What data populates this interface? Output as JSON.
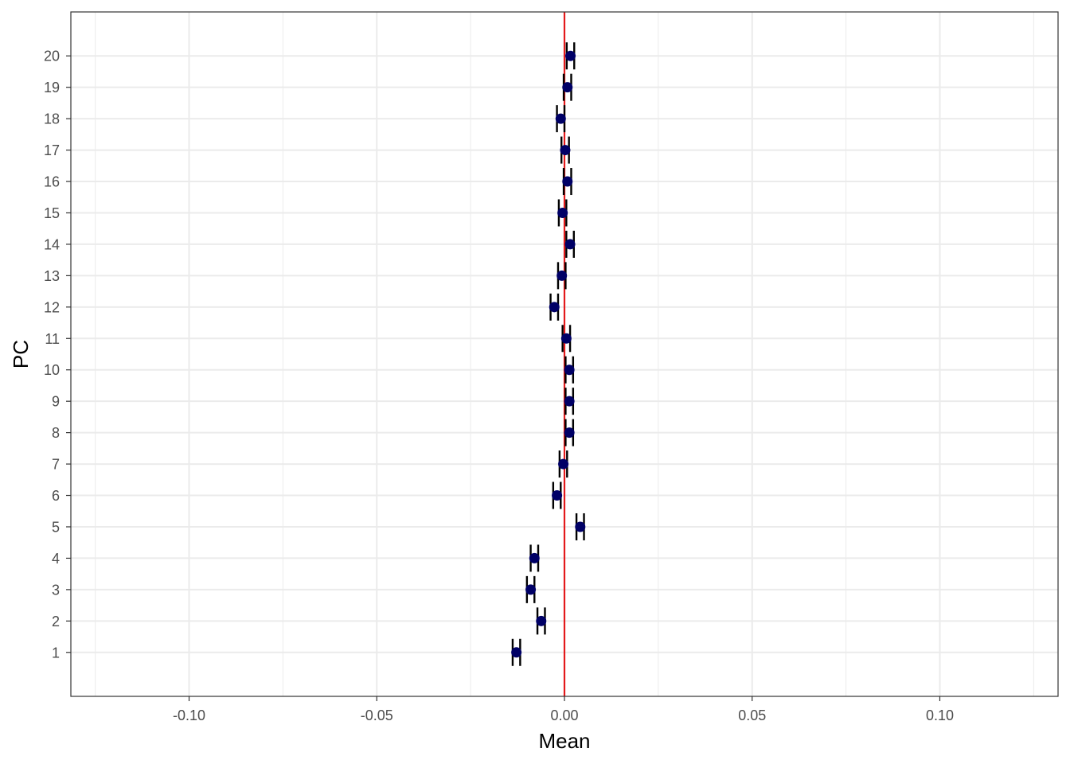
{
  "chart_data": {
    "type": "scatter",
    "title": "",
    "xlabel": "Mean",
    "ylabel": "PC",
    "xlim": [
      -0.1315,
      0.1315
    ],
    "ylim": [
      -0.4,
      21.4
    ],
    "x_ticks": [
      -0.1,
      -0.05,
      0.0,
      0.05,
      0.1
    ],
    "x_tick_labels": [
      "-0.10",
      "-0.05",
      "0.00",
      "0.05",
      "0.10"
    ],
    "y_ticks": [
      1,
      2,
      3,
      4,
      5,
      6,
      7,
      8,
      9,
      10,
      11,
      12,
      13,
      14,
      15,
      16,
      17,
      18,
      19,
      20
    ],
    "y_tick_labels": [
      "1",
      "2",
      "3",
      "4",
      "5",
      "6",
      "7",
      "8",
      "9",
      "10",
      "11",
      "12",
      "13",
      "14",
      "15",
      "16",
      "17",
      "18",
      "19",
      "20"
    ],
    "grid": true,
    "legend": "none",
    "reference_line": {
      "x": 0,
      "color": "#e41a1c"
    },
    "point_color": "#000066",
    "errorbar_color": "#000000",
    "points": [
      {
        "pc": 1,
        "mean": -0.0128,
        "lower": -0.0138,
        "upper": -0.0118
      },
      {
        "pc": 2,
        "mean": -0.0062,
        "lower": -0.0072,
        "upper": -0.0052
      },
      {
        "pc": 3,
        "mean": -0.009,
        "lower": -0.01,
        "upper": -0.008
      },
      {
        "pc": 4,
        "mean": -0.008,
        "lower": -0.009,
        "upper": -0.007
      },
      {
        "pc": 5,
        "mean": 0.0042,
        "lower": 0.0032,
        "upper": 0.0052
      },
      {
        "pc": 6,
        "mean": -0.002,
        "lower": -0.003,
        "upper": -0.001
      },
      {
        "pc": 7,
        "mean": -0.0003,
        "lower": -0.0013,
        "upper": 0.0007
      },
      {
        "pc": 8,
        "mean": 0.0013,
        "lower": 0.0003,
        "upper": 0.0023
      },
      {
        "pc": 9,
        "mean": 0.0013,
        "lower": 0.0003,
        "upper": 0.0023
      },
      {
        "pc": 10,
        "mean": 0.0013,
        "lower": 0.0003,
        "upper": 0.0023
      },
      {
        "pc": 11,
        "mean": 0.0005,
        "lower": -0.0005,
        "upper": 0.0015
      },
      {
        "pc": 12,
        "mean": -0.0027,
        "lower": -0.0037,
        "upper": -0.0017
      },
      {
        "pc": 13,
        "mean": -0.0007,
        "lower": -0.0017,
        "upper": 0.0003
      },
      {
        "pc": 14,
        "mean": 0.0015,
        "lower": 0.0005,
        "upper": 0.0025
      },
      {
        "pc": 15,
        "mean": -0.0005,
        "lower": -0.0015,
        "upper": 0.0005
      },
      {
        "pc": 16,
        "mean": 0.0008,
        "lower": -0.0002,
        "upper": 0.0018
      },
      {
        "pc": 17,
        "mean": 0.0002,
        "lower": -0.0008,
        "upper": 0.0012
      },
      {
        "pc": 18,
        "mean": -0.001,
        "lower": -0.002,
        "upper": 0.0
      },
      {
        "pc": 19,
        "mean": 0.0008,
        "lower": -0.0002,
        "upper": 0.0018
      },
      {
        "pc": 20,
        "mean": 0.0016,
        "lower": 0.0006,
        "upper": 0.0026
      }
    ]
  }
}
